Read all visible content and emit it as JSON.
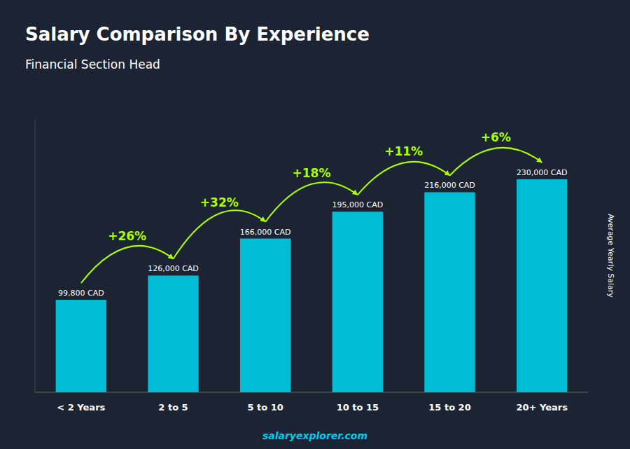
{
  "chart_data": {
    "type": "bar",
    "title": "Salary Comparison By Experience",
    "subtitle": "Financial Section Head",
    "ylabel": "Average Yearly Salary",
    "watermark": "salaryexplorer.com",
    "categories": [
      "< 2 Years",
      "2 to 5",
      "5 to 10",
      "10 to 15",
      "15 to 20",
      "20+ Years"
    ],
    "values": [
      99800,
      126000,
      166000,
      195000,
      216000,
      230000
    ],
    "value_labels": [
      "99,800 CAD",
      "126,000 CAD",
      "166,000 CAD",
      "195,000 CAD",
      "216,000 CAD",
      "230,000 CAD"
    ],
    "data_labels": true,
    "annotations": [
      {
        "text": "+26%",
        "color": "#aaff00"
      },
      {
        "text": "+32%",
        "color": "#aaff00"
      },
      {
        "text": "+18%",
        "color": "#aaff00"
      },
      {
        "text": "+11%",
        "color": "#aaff00"
      },
      {
        "text": "+6%",
        "color": "#aaff00"
      }
    ],
    "color": "#00bcd4",
    "ylim": [
      0,
      295000
    ],
    "grid": false,
    "tick_labels": "x"
  }
}
